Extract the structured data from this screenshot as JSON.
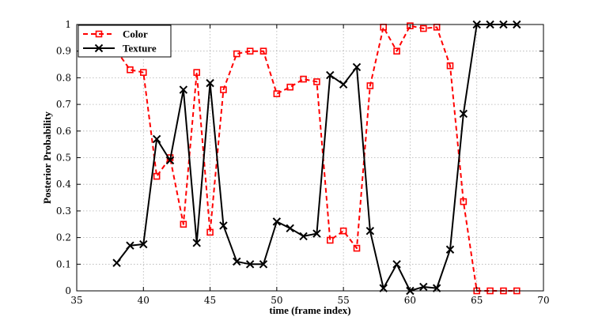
{
  "chart_data": {
    "type": "line",
    "xlabel": "time (frame index)",
    "ylabel": "Posterior Probability",
    "xlim": [
      35,
      70
    ],
    "ylim": [
      0,
      1
    ],
    "xticks": [
      35,
      40,
      45,
      50,
      55,
      60,
      65,
      70
    ],
    "yticks": [
      0,
      0.1,
      0.2,
      0.3,
      0.4,
      0.5,
      0.6,
      0.7,
      0.8,
      0.9,
      1
    ],
    "grid": true,
    "legend": "top-left",
    "series": [
      {
        "name": "Color",
        "color": "#ff0000",
        "line_style": "dashed",
        "marker": "square",
        "x": [
          38,
          39,
          40,
          41,
          42,
          43,
          44,
          45,
          46,
          47,
          48,
          49,
          50,
          51,
          52,
          53,
          54,
          55,
          56,
          57,
          58,
          59,
          60,
          61,
          62,
          63,
          64,
          65,
          66,
          67,
          68
        ],
        "y": [
          0.9,
          0.83,
          0.82,
          0.43,
          0.5,
          0.25,
          0.82,
          0.22,
          0.755,
          0.89,
          0.9,
          0.9,
          0.74,
          0.765,
          0.795,
          0.785,
          0.19,
          0.225,
          0.16,
          0.77,
          0.99,
          0.9,
          0.995,
          0.985,
          0.99,
          0.845,
          0.335,
          0.0,
          0.0,
          0.0,
          0.0
        ]
      },
      {
        "name": "Texture",
        "color": "#000000",
        "line_style": "solid",
        "marker": "x",
        "x": [
          38,
          39,
          40,
          41,
          42,
          43,
          44,
          45,
          46,
          47,
          48,
          49,
          50,
          51,
          52,
          53,
          54,
          55,
          56,
          57,
          58,
          59,
          60,
          61,
          62,
          63,
          64,
          65,
          66,
          67,
          68
        ],
        "y": [
          0.105,
          0.17,
          0.175,
          0.57,
          0.49,
          0.755,
          0.18,
          0.78,
          0.245,
          0.11,
          0.1,
          0.1,
          0.26,
          0.235,
          0.205,
          0.215,
          0.81,
          0.775,
          0.84,
          0.225,
          0.01,
          0.1,
          0.0,
          0.015,
          0.01,
          0.155,
          0.665,
          1.0,
          1.0,
          1.0,
          1.0
        ]
      }
    ]
  }
}
